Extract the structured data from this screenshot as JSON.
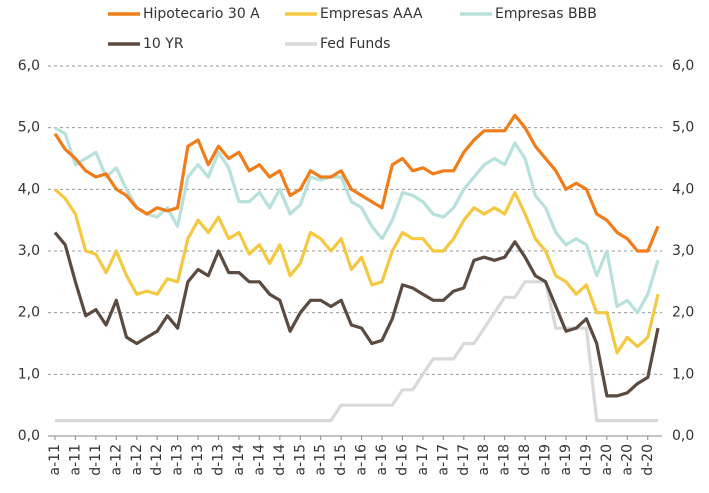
{
  "chart_data": {
    "type": "line",
    "categories": [
      "a-11",
      null,
      "a-11",
      null,
      "d-11",
      null,
      "a-12",
      null,
      "a-12",
      null,
      "d-12",
      null,
      "a-13",
      null,
      "a-13",
      null,
      "d-13",
      null,
      "a-14",
      null,
      "a-14",
      null,
      "d-14",
      null,
      "a-15",
      null,
      "a-15",
      null,
      "d-15",
      null,
      "a-16",
      null,
      "a-16",
      null,
      "d-16",
      null,
      "a-17",
      null,
      "a-17",
      null,
      "d-17",
      null,
      "a-18",
      null,
      "a-18",
      null,
      "d-18",
      null,
      "a-19",
      null,
      "a-19",
      null,
      "d-19",
      null,
      "a-20",
      null,
      "a-20",
      null,
      "d-20",
      null
    ],
    "series": [
      {
        "name": "Hipotecario 30 A",
        "color": "#f07d1a",
        "values": [
          4.9,
          4.65,
          4.5,
          4.3,
          4.2,
          4.25,
          4.0,
          3.9,
          3.7,
          3.6,
          3.7,
          3.65,
          3.7,
          4.7,
          4.8,
          4.4,
          4.7,
          4.5,
          4.6,
          4.3,
          4.4,
          4.2,
          4.3,
          3.9,
          4.0,
          4.3,
          4.2,
          4.2,
          4.3,
          4.0,
          3.9,
          3.8,
          3.7,
          4.4,
          4.5,
          4.3,
          4.35,
          4.25,
          4.3,
          4.3,
          4.6,
          4.8,
          4.95,
          4.95,
          4.95,
          5.2,
          5.0,
          4.7,
          4.5,
          4.3,
          4.0,
          4.1,
          4.0,
          3.6,
          3.5,
          3.3,
          3.2,
          3.0,
          3.0,
          3.4
        ]
      },
      {
        "name": "Empresas AAA",
        "color": "#f5c842",
        "values": [
          4.0,
          3.85,
          3.6,
          3.0,
          2.95,
          2.65,
          3.0,
          2.6,
          2.3,
          2.35,
          2.3,
          2.55,
          2.5,
          3.2,
          3.5,
          3.3,
          3.55,
          3.2,
          3.3,
          2.95,
          3.1,
          2.8,
          3.1,
          2.6,
          2.8,
          3.3,
          3.2,
          3.0,
          3.2,
          2.7,
          2.9,
          2.45,
          2.5,
          3.0,
          3.3,
          3.2,
          3.2,
          3.0,
          3.0,
          3.2,
          3.5,
          3.7,
          3.6,
          3.7,
          3.6,
          3.95,
          3.6,
          3.2,
          3.0,
          2.6,
          2.5,
          2.3,
          2.45,
          2.0,
          2.0,
          1.35,
          1.6,
          1.45,
          1.6,
          2.3
        ]
      },
      {
        "name": "Empresas BBB",
        "color": "#b8e0dc",
        "values": [
          5.0,
          4.9,
          4.4,
          4.5,
          4.6,
          4.2,
          4.35,
          4.0,
          3.7,
          3.6,
          3.55,
          3.7,
          3.4,
          4.2,
          4.4,
          4.2,
          4.6,
          4.35,
          3.8,
          3.8,
          3.95,
          3.7,
          4.0,
          3.6,
          3.75,
          4.2,
          4.15,
          4.2,
          4.2,
          3.8,
          3.7,
          3.4,
          3.2,
          3.5,
          3.95,
          3.9,
          3.8,
          3.6,
          3.55,
          3.7,
          4.0,
          4.2,
          4.4,
          4.5,
          4.4,
          4.75,
          4.5,
          3.9,
          3.7,
          3.3,
          3.1,
          3.2,
          3.1,
          2.6,
          3.0,
          2.1,
          2.2,
          2.0,
          2.3,
          2.85
        ]
      },
      {
        "name": "10 YR",
        "color": "#5a4a3f",
        "values": [
          3.3,
          3.1,
          2.5,
          1.95,
          2.05,
          1.8,
          2.2,
          1.6,
          1.5,
          1.6,
          1.7,
          1.95,
          1.75,
          2.5,
          2.7,
          2.6,
          3.0,
          2.65,
          2.65,
          2.5,
          2.5,
          2.3,
          2.2,
          1.7,
          2.0,
          2.2,
          2.2,
          2.1,
          2.2,
          1.8,
          1.75,
          1.5,
          1.55,
          1.9,
          2.45,
          2.4,
          2.3,
          2.2,
          2.2,
          2.35,
          2.4,
          2.85,
          2.9,
          2.85,
          2.9,
          3.15,
          2.9,
          2.6,
          2.5,
          2.1,
          1.7,
          1.75,
          1.9,
          1.5,
          0.65,
          0.65,
          0.7,
          0.85,
          0.95,
          1.75
        ]
      },
      {
        "name": "Fed Funds",
        "color": "#d9d9d9",
        "values": [
          0.25,
          0.25,
          0.25,
          0.25,
          0.25,
          0.25,
          0.25,
          0.25,
          0.25,
          0.25,
          0.25,
          0.25,
          0.25,
          0.25,
          0.25,
          0.25,
          0.25,
          0.25,
          0.25,
          0.25,
          0.25,
          0.25,
          0.25,
          0.25,
          0.25,
          0.25,
          0.25,
          0.25,
          0.5,
          0.5,
          0.5,
          0.5,
          0.5,
          0.5,
          0.75,
          0.75,
          1.0,
          1.25,
          1.25,
          1.25,
          1.5,
          1.5,
          1.75,
          2.0,
          2.25,
          2.25,
          2.5,
          2.5,
          2.5,
          1.75,
          1.75,
          1.75,
          1.75,
          0.25,
          0.25,
          0.25,
          0.25,
          0.25,
          0.25,
          0.25
        ]
      }
    ],
    "ylim": [
      0,
      6
    ],
    "yticks": [
      {
        "value": 0,
        "label": "0,0"
      },
      {
        "value": 1,
        "label": "1,0"
      },
      {
        "value": 2,
        "label": "2,0"
      },
      {
        "value": 3,
        "label": "3,0"
      },
      {
        "value": 4,
        "label": "4,0"
      },
      {
        "value": 5,
        "label": "5,0"
      },
      {
        "value": 6,
        "label": "6,0"
      }
    ],
    "y2lim": [
      0,
      6
    ],
    "y2ticks": [
      {
        "value": 0,
        "label": "0,0"
      },
      {
        "value": 1,
        "label": "1,0"
      },
      {
        "value": 2,
        "label": "2,0"
      },
      {
        "value": 3,
        "label": "3,0"
      },
      {
        "value": 4,
        "label": "4,0"
      },
      {
        "value": 5,
        "label": "5,0"
      },
      {
        "value": 6,
        "label": "6,0"
      }
    ],
    "grid": true,
    "legend": "top"
  }
}
